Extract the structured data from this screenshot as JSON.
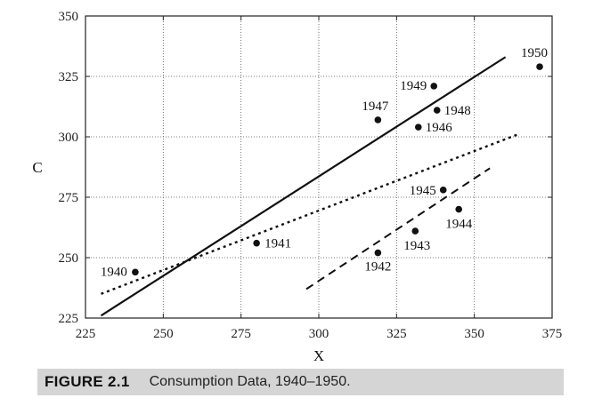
{
  "chart_data": {
    "type": "scatter",
    "xlabel": "X",
    "ylabel": "C",
    "xlim": [
      225,
      375
    ],
    "ylim": [
      225,
      350
    ],
    "x_ticks": [
      225,
      250,
      275,
      300,
      325,
      350,
      375
    ],
    "y_ticks": [
      225,
      250,
      275,
      300,
      325,
      350
    ],
    "grid": true,
    "points": [
      {
        "label": "1940",
        "x": 241,
        "y": 244
      },
      {
        "label": "1941",
        "x": 280,
        "y": 256
      },
      {
        "label": "1942",
        "x": 319,
        "y": 252
      },
      {
        "label": "1943",
        "x": 331,
        "y": 261
      },
      {
        "label": "1944",
        "x": 345,
        "y": 270
      },
      {
        "label": "1945",
        "x": 340,
        "y": 278
      },
      {
        "label": "1946",
        "x": 332,
        "y": 304
      },
      {
        "label": "1947",
        "x": 319,
        "y": 307
      },
      {
        "label": "1948",
        "x": 338,
        "y": 311
      },
      {
        "label": "1949",
        "x": 337,
        "y": 321
      },
      {
        "label": "1950",
        "x": 371,
        "y": 329
      }
    ],
    "lines": [
      {
        "style": "solid",
        "x": [
          230,
          360
        ],
        "y": [
          226,
          333
        ]
      },
      {
        "style": "dotted",
        "x": [
          230,
          364
        ],
        "y": [
          235,
          301
        ]
      },
      {
        "style": "dashed",
        "x": [
          296,
          355
        ],
        "y": [
          237,
          287
        ]
      }
    ]
  },
  "caption": {
    "label": "FIGURE 2.1",
    "text": "Consumption Data, 1940–1950."
  }
}
